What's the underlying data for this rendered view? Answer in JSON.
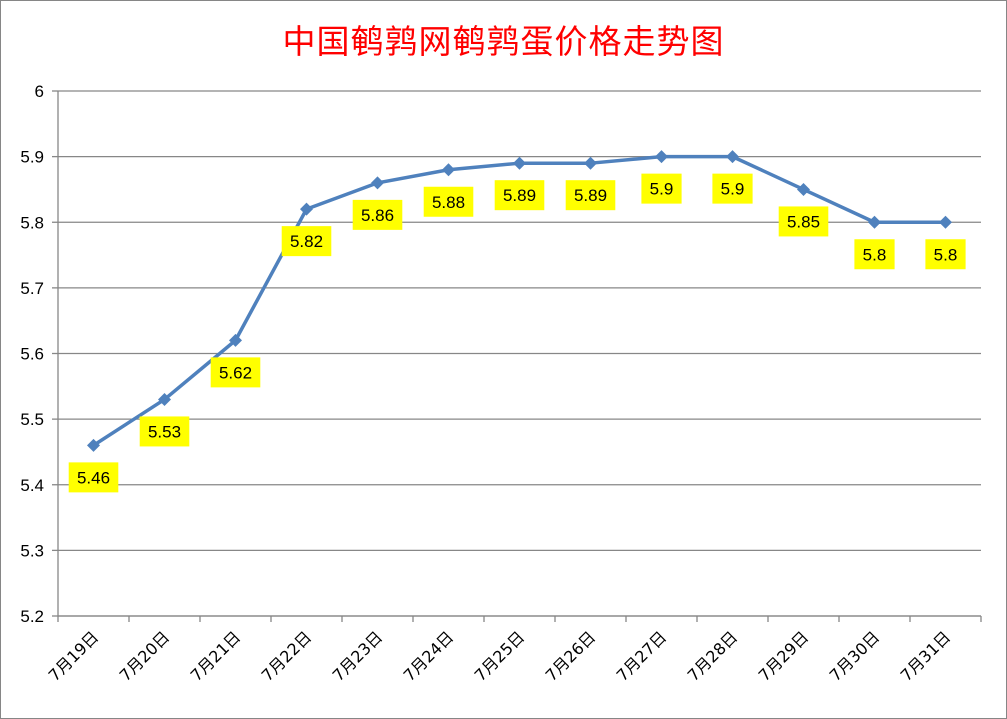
{
  "chart_data": {
    "type": "line",
    "title": "中国鹌鹑网鹌鹑蛋价格走势图",
    "categories": [
      "7月19日",
      "7月20日",
      "7月21日",
      "7月22日",
      "7月23日",
      "7月24日",
      "7月25日",
      "7月26日",
      "7月27日",
      "7月28日",
      "7月29日",
      "7月30日",
      "7月31日"
    ],
    "series": [
      {
        "values": [
          5.46,
          5.53,
          5.62,
          5.82,
          5.86,
          5.88,
          5.89,
          5.89,
          5.9,
          5.9,
          5.85,
          5.8,
          5.8
        ],
        "labels": [
          "5.46",
          "5.53",
          "5.62",
          "5.82",
          "5.86",
          "5.88",
          "5.89",
          "5.89",
          "5.9",
          "5.9",
          "5.85",
          "5.8",
          "5.8"
        ],
        "color": "#4f81bd",
        "marker": "diamond"
      }
    ],
    "ylim": [
      5.2,
      6
    ],
    "yticks": [
      "5.2",
      "5.3",
      "5.4",
      "5.5",
      "5.6",
      "5.7",
      "5.8",
      "5.9",
      "6"
    ],
    "grid": true,
    "legend": "none",
    "label_background": "#ffff00"
  }
}
